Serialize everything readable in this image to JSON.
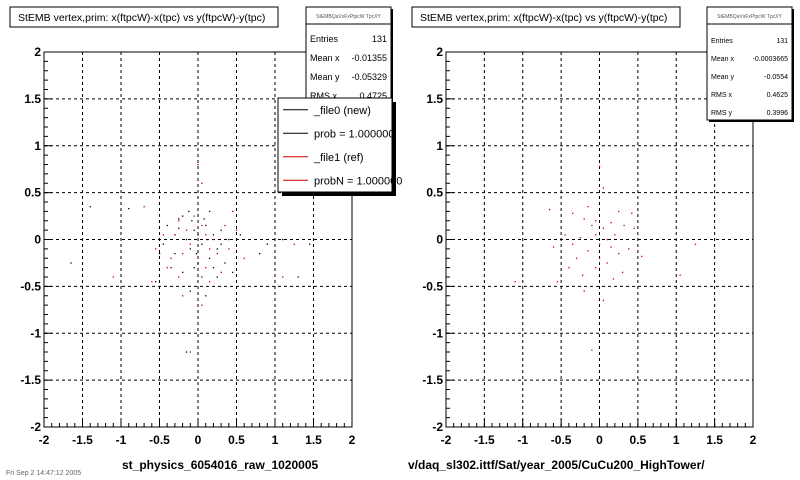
{
  "panels": [
    {
      "title": "StEMB  vertex,prim: x(ftpcW)-x(tpc) vs y(ftpcW)-y(tpc)",
      "stats": {
        "header": "StEMBQaVxFxPtpcW TpcXY",
        "rows": [
          {
            "label": "Entries",
            "value": "131"
          },
          {
            "label": "Mean x",
            "value": "-0.01355"
          },
          {
            "label": "Mean y",
            "value": "-0.05329"
          },
          {
            "label": "RMS x",
            "value": "0.4725"
          }
        ]
      },
      "legend": [
        {
          "label": "_file0 (new)",
          "color": "#000000"
        },
        {
          "label": "prob = 1.000000",
          "color": "#000000"
        },
        {
          "label": "_file1 (ref)",
          "color": "#cc0000"
        },
        {
          "label": "probN = 1.000000",
          "color": "#cc0000"
        }
      ],
      "footer": "st_physics_6054016_raw_1020005"
    },
    {
      "title": "StEMB  vertex,prim: x(ftpcW)-x(tpc) vs y(ftpcW)-y(tpc)",
      "stats": {
        "header": "StEMBQaVxFxPtpcW TpcXY",
        "rows": [
          {
            "label": "Entries",
            "value": "131"
          },
          {
            "label": "Mean x",
            "value": "-0.0003665"
          },
          {
            "label": "Mean y",
            "value": "-0.0554"
          },
          {
            "label": "RMS x",
            "value": "0.4625"
          },
          {
            "label": "RMS y",
            "value": "0.3996"
          }
        ]
      },
      "footer": "v/daq_sl302.ittf/Sat/year_2005/CuCu200_HighTower/"
    }
  ],
  "corner_text": "Fri Sep  2 14:47:12 2005",
  "chart_data": [
    {
      "type": "scatter",
      "title": "StEMB  vertex,prim: x(ftpcW)-x(tpc) vs y(ftpcW)-y(tpc)",
      "xlim": [
        -2,
        2
      ],
      "ylim": [
        -2,
        2
      ],
      "xticks": [
        "-2",
        "-1.5",
        "-1",
        "-0.5",
        "0",
        "0.5",
        "1",
        "1.5",
        "2"
      ],
      "yticks": [
        "-2",
        "-1.5",
        "-1",
        "-0.5",
        "0",
        "0.5",
        "1",
        "1.5",
        "2"
      ],
      "grid": true,
      "legend_position": "top-right",
      "series": [
        {
          "name": "_file0 (new)",
          "color": "#000000",
          "points": [
            [
              -1.4,
              0.35
            ],
            [
              -0.9,
              0.33
            ],
            [
              -1.65,
              -0.25
            ],
            [
              -0.55,
              -0.45
            ],
            [
              -0.45,
              -0.05
            ],
            [
              -0.35,
              -0.3
            ],
            [
              -0.3,
              0.05
            ],
            [
              -0.25,
              0.12
            ],
            [
              -0.2,
              0.25
            ],
            [
              -0.15,
              0.0
            ],
            [
              -0.1,
              -0.1
            ],
            [
              -0.05,
              0.1
            ],
            [
              0.0,
              0.05
            ],
            [
              0.05,
              -0.05
            ],
            [
              0.1,
              0.15
            ],
            [
              0.12,
              0.0
            ],
            [
              -0.08,
              0.2
            ],
            [
              -0.02,
              -0.15
            ],
            [
              0.15,
              -0.2
            ],
            [
              0.2,
              0.05
            ],
            [
              0.25,
              -0.1
            ],
            [
              0.3,
              0.1
            ],
            [
              0.35,
              -0.25
            ],
            [
              0.4,
              0.0
            ],
            [
              -0.2,
              -0.35
            ],
            [
              0.05,
              -0.4
            ],
            [
              0.1,
              -0.6
            ],
            [
              -0.1,
              -0.55
            ],
            [
              0.2,
              -0.3
            ],
            [
              -0.3,
              -0.15
            ],
            [
              0.8,
              -0.15
            ],
            [
              0.9,
              -0.05
            ],
            [
              1.1,
              0.0
            ],
            [
              1.3,
              -0.4
            ],
            [
              1.45,
              -0.05
            ],
            [
              -0.15,
              -1.2
            ],
            [
              0.45,
              -0.35
            ],
            [
              0.55,
              0.05
            ],
            [
              -0.4,
              0.15
            ],
            [
              -0.25,
              0.22
            ],
            [
              0.0,
              -0.25
            ],
            [
              0.15,
              0.3
            ],
            [
              -0.05,
              -0.3
            ],
            [
              0.3,
              -0.05
            ],
            [
              -0.5,
              -0.15
            ],
            [
              -0.12,
              0.3
            ],
            [
              0.08,
              0.22
            ],
            [
              0.25,
              -0.4
            ]
          ]
        },
        {
          "name": "_file1 (ref)",
          "color": "#cc0000",
          "points": [
            [
              -0.7,
              0.35
            ],
            [
              -0.5,
              0.25
            ],
            [
              -0.25,
              0.2
            ],
            [
              -0.15,
              0.1
            ],
            [
              -0.1,
              -0.05
            ],
            [
              0.0,
              0.8
            ],
            [
              0.05,
              0.6
            ],
            [
              0.1,
              0.05
            ],
            [
              0.15,
              -0.1
            ],
            [
              0.2,
              0.0
            ],
            [
              0.25,
              -0.15
            ],
            [
              -0.35,
              -0.2
            ],
            [
              -0.4,
              -0.3
            ],
            [
              -0.6,
              -0.45
            ],
            [
              -0.2,
              -0.6
            ],
            [
              0.05,
              -0.7
            ],
            [
              0.3,
              -0.35
            ],
            [
              0.4,
              -0.1
            ],
            [
              0.5,
              0.1
            ],
            [
              -0.05,
              0.25
            ],
            [
              -0.3,
              0.05
            ],
            [
              -0.2,
              -0.15
            ],
            [
              0.1,
              -0.3
            ],
            [
              0.35,
              0.15
            ],
            [
              -0.45,
              0.05
            ],
            [
              0.0,
              -0.2
            ],
            [
              -0.1,
              -1.2
            ],
            [
              0.15,
              -0.45
            ],
            [
              -0.25,
              -0.4
            ],
            [
              0.05,
              0.15
            ],
            [
              1.1,
              -0.4
            ],
            [
              1.25,
              -0.05
            ],
            [
              -1.1,
              -0.4
            ],
            [
              0.6,
              -0.2
            ],
            [
              -0.55,
              -0.1
            ],
            [
              0.45,
              0.3
            ]
          ]
        }
      ]
    },
    {
      "type": "scatter",
      "title": "StEMB  vertex,prim: x(ftpcW)-x(tpc) vs y(ftpcW)-y(tpc)",
      "xlim": [
        -2,
        2
      ],
      "ylim": [
        -2,
        2
      ],
      "xticks": [
        "-2",
        "-1.5",
        "-1",
        "-0.5",
        "0",
        "0.5",
        "1",
        "1.5",
        "2"
      ],
      "yticks": [
        "-2",
        "-1.5",
        "-1",
        "-0.5",
        "0",
        "0.5",
        "1",
        "1.5",
        "2"
      ],
      "grid": true,
      "series": [
        {
          "color": "#cc0000",
          "points": [
            [
              -0.65,
              0.32
            ],
            [
              -0.35,
              0.28
            ],
            [
              -0.2,
              0.22
            ],
            [
              -0.1,
              0.15
            ],
            [
              -0.05,
              0.05
            ],
            [
              0.0,
              0.78
            ],
            [
              0.05,
              0.55
            ],
            [
              0.1,
              0.0
            ],
            [
              0.15,
              -0.08
            ],
            [
              0.2,
              0.05
            ],
            [
              0.25,
              -0.15
            ],
            [
              -0.3,
              -0.2
            ],
            [
              -0.4,
              -0.3
            ],
            [
              -0.55,
              -0.45
            ],
            [
              -0.2,
              -0.55
            ],
            [
              0.05,
              -0.65
            ],
            [
              0.3,
              -0.35
            ],
            [
              0.38,
              -0.1
            ],
            [
              0.45,
              0.12
            ],
            [
              -0.05,
              0.2
            ],
            [
              -0.25,
              0.02
            ],
            [
              -0.15,
              -0.12
            ],
            [
              0.1,
              -0.25
            ],
            [
              0.32,
              0.15
            ],
            [
              -0.45,
              0.05
            ],
            [
              0.0,
              -0.2
            ],
            [
              -0.1,
              -1.18
            ],
            [
              0.18,
              -0.42
            ],
            [
              -0.22,
              -0.38
            ],
            [
              0.05,
              0.12
            ],
            [
              1.05,
              -0.38
            ],
            [
              1.25,
              -0.05
            ],
            [
              -1.1,
              -0.45
            ],
            [
              0.55,
              -0.18
            ],
            [
              -0.6,
              -0.08
            ],
            [
              0.42,
              0.28
            ],
            [
              -0.15,
              0.35
            ],
            [
              0.25,
              0.3
            ],
            [
              -0.35,
              -0.05
            ],
            [
              0.15,
              0.18
            ],
            [
              0.0,
              -0.05
            ],
            [
              -0.05,
              -0.3
            ]
          ]
        }
      ]
    }
  ]
}
